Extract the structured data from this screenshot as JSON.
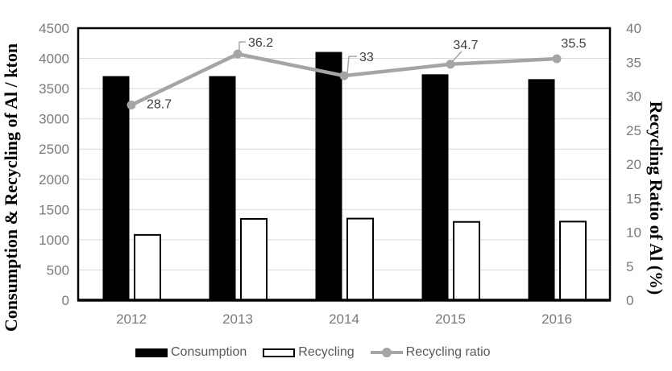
{
  "chart_data": {
    "type": "combo_bar_line",
    "title": "",
    "categories": [
      "2012",
      "2013",
      "2014",
      "2015",
      "2016"
    ],
    "series": [
      {
        "name": "Consumption",
        "type": "bar",
        "axis": "primary",
        "values": [
          3700,
          3700,
          4100,
          3730,
          3650
        ],
        "fill": "#000000",
        "stroke": "#000000"
      },
      {
        "name": "Recycling",
        "type": "bar",
        "axis": "primary",
        "values": [
          1080,
          1345,
          1350,
          1295,
          1300
        ],
        "fill": "#ffffff",
        "stroke": "#000000"
      },
      {
        "name": "Recycling ratio",
        "type": "line",
        "axis": "secondary",
        "values": [
          28.7,
          36.2,
          33,
          34.7,
          35.5
        ],
        "labels": [
          "28.7",
          "36.2",
          "33",
          "34.7",
          "35.5"
        ],
        "color": "#a5a5a5"
      }
    ],
    "y_primary": {
      "title": "Consumption & Recycling of Al / kton",
      "min": 0,
      "max": 4500,
      "step": 500,
      "ticks": [
        0,
        500,
        1000,
        1500,
        2000,
        2500,
        3000,
        3500,
        4000,
        4500
      ]
    },
    "y_secondary": {
      "title": "Recycling Ratio of Al (%)",
      "min": 0,
      "max": 40,
      "step": 5,
      "ticks": [
        0,
        5,
        10,
        15,
        20,
        25,
        30,
        35,
        40
      ]
    },
    "xlabel": "",
    "grid": true,
    "legend_position": "bottom",
    "colors": {
      "bar_consumption": "#000000",
      "bar_recycling_fill": "#ffffff",
      "bar_recycling_stroke": "#000000",
      "line": "#a5a5a5",
      "gridline": "#d9d9d9",
      "axis_border": "#000000",
      "tick_label": "#7a7a7a",
      "data_label": "#3f3f3f",
      "legend_text": "#595959"
    }
  }
}
